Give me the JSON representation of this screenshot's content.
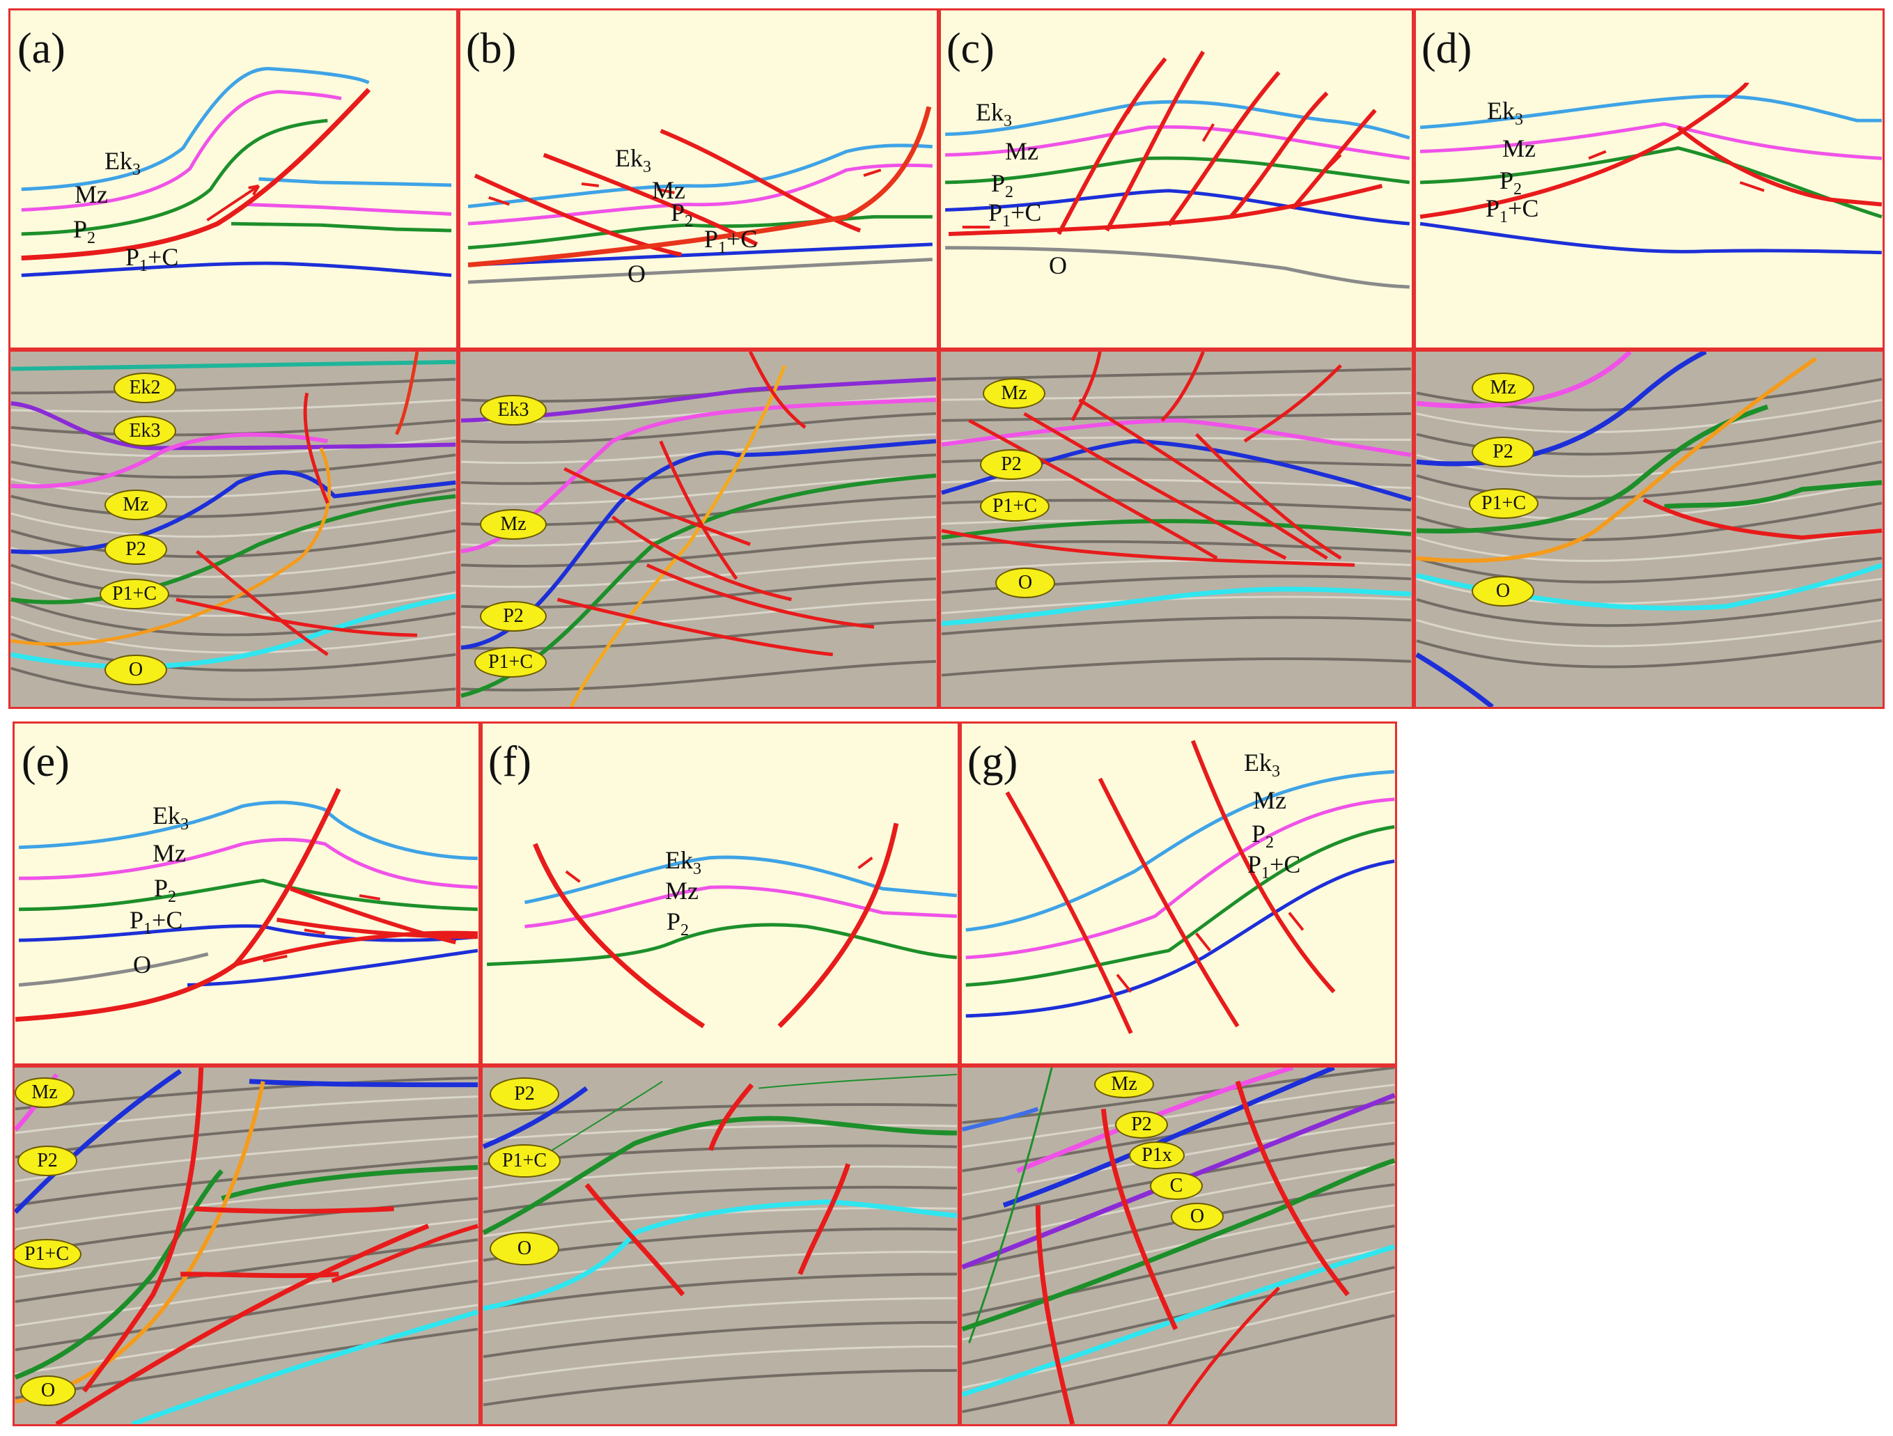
{
  "panels": {
    "a": {
      "label": "(a)",
      "units": {
        "ek": "Ek3",
        "mz": "Mz",
        "p2": "P2",
        "p1c": "P1+C"
      },
      "tags": [
        "Ek2",
        "Ek3",
        "Mz",
        "P2",
        "P1+C",
        "O"
      ]
    },
    "b": {
      "label": "(b)",
      "units": {
        "ek": "Ek3",
        "mz": "Mz",
        "p2": "P2",
        "p1c": "P1+C",
        "o": "O"
      },
      "tags": [
        "Ek3",
        "Mz",
        "P2",
        "P1+C"
      ]
    },
    "c": {
      "label": "(c)",
      "units": {
        "ek": "Ek3",
        "mz": "Mz",
        "p2": "P2",
        "p1c": "P1+C",
        "o": "O"
      },
      "tags": [
        "Mz",
        "P2",
        "P1+C",
        "O"
      ]
    },
    "d": {
      "label": "(d)",
      "units": {
        "ek": "Ek3",
        "mz": "Mz",
        "p2": "P2",
        "p1c": "P1+C"
      },
      "tags": [
        "Mz",
        "P2",
        "P1+C",
        "O"
      ]
    },
    "e": {
      "label": "(e)",
      "units": {
        "ek": "Ek3",
        "mz": "Mz",
        "p2": "P2",
        "p1c": "P1+C",
        "o": "O"
      },
      "tags": [
        "Mz",
        "P2",
        "P1+C",
        "O"
      ]
    },
    "f": {
      "label": "(f)",
      "units": {
        "ek": "Ek3",
        "mz": "Mz",
        "p2": "P2"
      },
      "tags": [
        "P2",
        "P1+C",
        "O"
      ]
    },
    "g": {
      "label": "(g)",
      "units": {
        "ek": "Ek3",
        "mz": "Mz",
        "p2": "P2",
        "p1c": "P1+C"
      },
      "tags": [
        "Mz",
        "P2",
        "P1x",
        "C",
        "O"
      ]
    }
  },
  "colors": {
    "ek": "#3fa3e6",
    "mz": "#f052e8",
    "p2": "#1d8f2a",
    "p1c": "#1c2fd8",
    "o": "#8a8a8a",
    "fault": "#e81b1b",
    "cyan": "#2ee6f0",
    "orange": "#f59b1c",
    "teal": "#1fb59a",
    "purple": "#8a2bd6"
  }
}
